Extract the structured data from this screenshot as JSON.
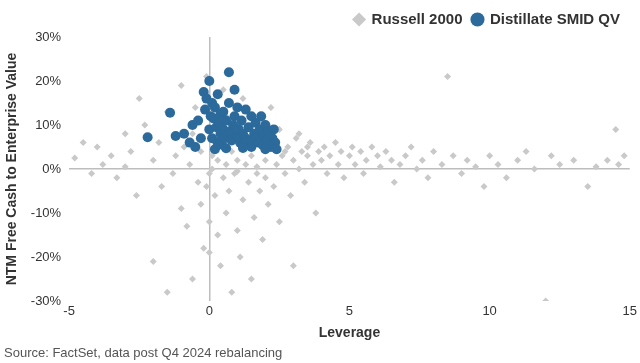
{
  "chart_data": {
    "type": "scatter",
    "x_label": "Leverage",
    "y_label": "NTM Free Cash to Enterprise Value",
    "source": "Source: FactSet, data post Q4 2024 rebalancing",
    "xlim": [
      -5,
      15
    ],
    "xticks": [
      -5,
      0,
      5,
      10,
      15
    ],
    "ylim": [
      -30,
      30
    ],
    "yticks": [
      {
        "value": -30,
        "label": "-30%"
      },
      {
        "value": -20,
        "label": "-20%"
      },
      {
        "value": -10,
        "label": "-10%"
      },
      {
        "value": 0,
        "label": "0%"
      },
      {
        "value": 10,
        "label": "10%"
      },
      {
        "value": 20,
        "label": "20%"
      },
      {
        "value": 30,
        "label": "30%"
      }
    ],
    "grid": false,
    "legend": "top-right",
    "series": [
      {
        "name": "Russell 2000",
        "color": "#c9c9c9",
        "marker": "diamond",
        "x": [
          -4.8,
          -4.5,
          -4.2,
          -4,
          -3.8,
          -3.5,
          -3.3,
          -3,
          -3,
          -2.8,
          -2.6,
          -2.5,
          -2.3,
          -2,
          -2,
          -1.8,
          -1.7,
          -1.5,
          -1.5,
          -1.3,
          -1.2,
          -1,
          -1,
          -0.9,
          -0.8,
          -0.7,
          -0.6,
          -0.5,
          -0.4,
          -0.3,
          -0.2,
          -0.1,
          -0.1,
          0,
          0,
          0,
          0.1,
          0.2,
          0.3,
          0.3,
          0.4,
          0.5,
          0.5,
          0.6,
          0.7,
          0.8,
          0.8,
          0.9,
          1,
          1,
          1.1,
          1.2,
          1.2,
          1.3,
          1.4,
          1.5,
          1.5,
          1.6,
          1.7,
          1.8,
          1.9,
          2,
          2,
          2.1,
          2.2,
          2.3,
          2.4,
          2.5,
          2.6,
          2.7,
          2.8,
          2.9,
          3,
          3,
          3.1,
          3.2,
          3.3,
          3.4,
          3.5,
          3.6,
          3.7,
          3.8,
          3.9,
          4,
          4.1,
          4.2,
          4.3,
          4.5,
          4.6,
          4.7,
          4.8,
          5,
          5.1,
          5.2,
          5.4,
          5.5,
          5.6,
          5.8,
          6,
          6.1,
          6.3,
          6.5,
          6.6,
          6.8,
          7,
          7.2,
          7.4,
          7.6,
          7.8,
          8,
          8.3,
          8.5,
          8.7,
          9,
          9.2,
          9.5,
          9.8,
          10,
          10.3,
          10.6,
          11,
          11.3,
          11.6,
          12,
          12.2,
          12.5,
          13,
          13.5,
          13.8,
          14.2,
          14.5,
          14.6,
          14.8,
          0.2,
          0.4,
          0.6,
          0.9,
          1.1,
          1.4,
          1.6,
          1.9,
          2.2,
          2.5,
          2.7,
          3.2,
          3.5,
          -0.3,
          -0.6,
          0.1,
          0.6,
          1,
          1.7
        ],
        "values": [
          2.5,
          6,
          -1,
          5,
          1,
          3,
          -2,
          8,
          0.5,
          4,
          -6,
          16,
          10,
          -21,
          2,
          6,
          -4,
          -28,
          13,
          -1,
          3,
          -9,
          19,
          5,
          -13,
          1,
          -25,
          14,
          -3,
          -8,
          -18,
          -4,
          21,
          -1,
          -12,
          -19,
          3,
          -6,
          -15,
          2,
          -22,
          -2,
          18,
          -10,
          -5,
          -28,
          4,
          -1,
          -14,
          2,
          -20,
          -7,
          16,
          1,
          -3,
          -25,
          3,
          -11,
          0.5,
          -5,
          -16,
          2,
          -2,
          -8,
          14,
          -4,
          1,
          -12,
          3,
          -1,
          5,
          -6,
          2,
          -22,
          7,
          0,
          4,
          -3,
          3,
          6,
          1,
          -10,
          4,
          2,
          5,
          -1,
          3,
          6,
          1,
          4,
          -2,
          3,
          5,
          1,
          4,
          -1,
          2,
          5,
          3,
          0.5,
          4,
          2,
          -3,
          1,
          3,
          5,
          0,
          2,
          -2,
          4,
          1,
          21,
          3,
          -1,
          2,
          0.5,
          -4,
          3,
          1,
          -2,
          2,
          4,
          0,
          -30,
          3,
          1,
          2,
          -4,
          0.5,
          2,
          9,
          1,
          3,
          6,
          9,
          12,
          7,
          10,
          5,
          8,
          11,
          6,
          9,
          4,
          8,
          5,
          4,
          8,
          0,
          1,
          -0.5,
          -1
        ]
      },
      {
        "name": "Distillate SMID QV",
        "color": "#2b6a9b",
        "marker": "circle",
        "x": [
          -2.2,
          -1.4,
          -1.2,
          -0.9,
          -0.7,
          -0.6,
          -0.5,
          -0.4,
          -0.3,
          -0.2,
          -0.15,
          -0.1,
          0,
          0,
          0.05,
          0.1,
          0.1,
          0.15,
          0.2,
          0.2,
          0.25,
          0.3,
          0.3,
          0.35,
          0.4,
          0.4,
          0.45,
          0.5,
          0.5,
          0.55,
          0.6,
          0.7,
          0.7,
          0.75,
          0.8,
          0.85,
          0.9,
          0.9,
          1,
          1,
          1.05,
          1.1,
          1.15,
          1.2,
          1.25,
          1.3,
          1.3,
          1.4,
          1.45,
          1.5,
          1.5,
          1.6,
          1.65,
          1.7,
          1.75,
          1.8,
          1.85,
          1.9,
          1.95,
          2,
          2.05,
          2.1,
          2.2,
          2.25,
          2.3,
          2.35,
          2.4,
          2,
          1.2,
          0.6
        ],
        "values": [
          7.2,
          12.8,
          7.5,
          8,
          6,
          10,
          5,
          11,
          7,
          17.5,
          13.5,
          16,
          20,
          9,
          12,
          15,
          7,
          11.5,
          14,
          4.5,
          9.5,
          6,
          17,
          10.5,
          8,
          12.5,
          5.5,
          13,
          9,
          7,
          11,
          22,
          15,
          8.5,
          6.5,
          10,
          18,
          12,
          7.5,
          14,
          9,
          6,
          11,
          8,
          5.5,
          13.5,
          7,
          9.5,
          6.5,
          12,
          5,
          8,
          10.5,
          7,
          6,
          9,
          12,
          5.5,
          7.5,
          10,
          6.5,
          8.5,
          5,
          7,
          9,
          6,
          4.5,
          4.5,
          4.8,
          4.7
        ]
      }
    ]
  }
}
